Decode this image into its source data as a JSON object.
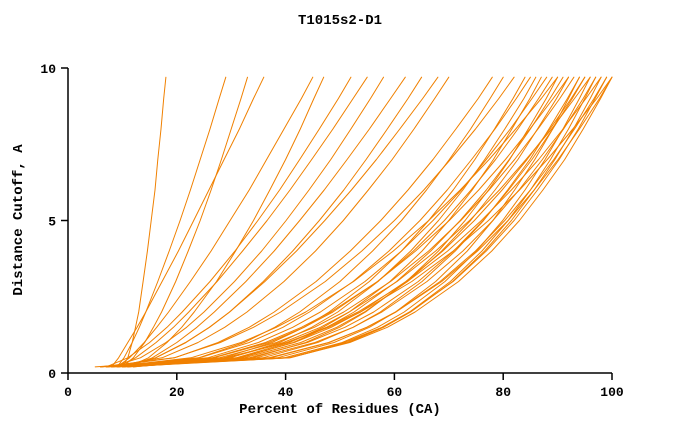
{
  "title": "T1015s2-D1",
  "chart_data": {
    "type": "line",
    "title": "T1015s2-D1",
    "xlabel": "Percent of Residues (CA)",
    "ylabel": "Distance Cutoff, A",
    "xlim": [
      0,
      100
    ],
    "ylim": [
      0,
      10
    ],
    "x_ticks": [
      0,
      20,
      40,
      60,
      80,
      100
    ],
    "y_ticks": [
      0,
      5,
      10
    ],
    "grid": false,
    "legend": "none",
    "line_color": "#f08000",
    "axis_color": "#000000",
    "background": "#ffffff",
    "y_levels": [
      0.2,
      0.5,
      1,
      1.5,
      2,
      3,
      4,
      5,
      6,
      7,
      8,
      9,
      9.7
    ],
    "series_x": [
      [
        10,
        11,
        11.8,
        12.4,
        13,
        13.8,
        14.6,
        15.3,
        16,
        16.5,
        17.1,
        17.6,
        18
      ],
      [
        9,
        10.3,
        11.8,
        13.1,
        14.3,
        16.5,
        18.6,
        20.6,
        22.5,
        24.3,
        26.1,
        27.8,
        29
      ],
      [
        10,
        12,
        14.1,
        15.7,
        17.2,
        19.8,
        22.1,
        24.3,
        26.3,
        28.2,
        30,
        31.8,
        33
      ],
      [
        8,
        9.3,
        11,
        12.7,
        14.3,
        17.3,
        20.3,
        23.1,
        25.9,
        28.7,
        31.5,
        34.1,
        36
      ],
      [
        9,
        11.3,
        14,
        16.3,
        18.5,
        22.5,
        26.3,
        29.8,
        33.3,
        36.5,
        39.7,
        42.9,
        45
      ],
      [
        11,
        14.8,
        18.2,
        20.9,
        23.2,
        27.3,
        30.8,
        34.1,
        37.1,
        40,
        42.7,
        45.2,
        47
      ],
      [
        7,
        11,
        15,
        18.2,
        21,
        26.1,
        30.7,
        34.9,
        38.9,
        42.6,
        46.2,
        49.7,
        52
      ],
      [
        9,
        12.4,
        16.2,
        19.4,
        22.2,
        27.4,
        32.1,
        36.6,
        40.8,
        44.8,
        48.7,
        52.4,
        55
      ],
      [
        8,
        13.3,
        18,
        21.8,
        25,
        30.6,
        35.6,
        40.1,
        44.3,
        48.3,
        52,
        55.6,
        58
      ],
      [
        11,
        15.5,
        20,
        23.7,
        26.9,
        32.7,
        37.9,
        42.6,
        47.1,
        51.3,
        55.4,
        59.3,
        62
      ],
      [
        9,
        16.1,
        21.7,
        26,
        29.7,
        35.9,
        41.3,
        46.2,
        50.7,
        54.8,
        58.7,
        62.5,
        65
      ],
      [
        10,
        16.1,
        21.6,
        26,
        29.7,
        36.2,
        42,
        47.2,
        52.1,
        56.7,
        61,
        65.2,
        68
      ],
      [
        8,
        17.3,
        23.9,
        28.8,
        32.9,
        39.7,
        45.5,
        50.6,
        55.2,
        59.6,
        63.6,
        67.4,
        70
      ],
      [
        7,
        19.6,
        27.6,
        33.3,
        37.9,
        45.6,
        51.9,
        57.5,
        62.5,
        67.1,
        71.3,
        75.4,
        78
      ],
      [
        9,
        24,
        32.4,
        38,
        42.6,
        50,
        56,
        61.3,
        65.9,
        70.1,
        74,
        77.6,
        80
      ],
      [
        6,
        19.5,
        28,
        34.1,
        39.1,
        47.3,
        54,
        60,
        65.4,
        70.3,
        74.9,
        79.2,
        82
      ],
      [
        10,
        28.6,
        37.5,
        43.4,
        48,
        55.4,
        61.3,
        66.3,
        70.8,
        74.8,
        78.4,
        81.8,
        84
      ],
      [
        8,
        24.2,
        33.3,
        39.5,
        44.4,
        52.4,
        59,
        64.7,
        69.7,
        74.2,
        78.5,
        82.4,
        85
      ],
      [
        11,
        29.8,
        38.9,
        44.8,
        49.6,
        57,
        63,
        68.1,
        72.6,
        76.6,
        80.3,
        83.8,
        86
      ],
      [
        7,
        30.9,
        40.7,
        46.9,
        51.7,
        59.2,
        65.1,
        70,
        74.3,
        78.2,
        81.6,
        84.9,
        87
      ],
      [
        9,
        25.7,
        35,
        41.3,
        46.4,
        54.6,
        61.3,
        67.1,
        72.3,
        76.9,
        81.3,
        85.3,
        88
      ],
      [
        6,
        26.8,
        36.9,
        43.4,
        48.7,
        56.9,
        63.5,
        69.2,
        74.1,
        78.6,
        82.7,
        86.5,
        89
      ],
      [
        10,
        33.9,
        43.7,
        49.9,
        54.7,
        62.2,
        68.1,
        73,
        77.3,
        81.2,
        84.6,
        87.9,
        90
      ],
      [
        8,
        22.6,
        31.8,
        38.3,
        43.7,
        52.5,
        59.8,
        66.3,
        72.1,
        77.4,
        82.3,
        87,
        90
      ],
      [
        12,
        31.8,
        41.4,
        47.6,
        52.6,
        60.4,
        66.7,
        72.1,
        76.9,
        81.1,
        85,
        88.6,
        91
      ],
      [
        7,
        32.4,
        42.8,
        49.4,
        54.5,
        62.4,
        68.7,
        74,
        78.5,
        82.7,
        86.3,
        89.8,
        92
      ],
      [
        9,
        26.5,
        36.3,
        42.9,
        48.3,
        56.9,
        63.9,
        70.1,
        75.5,
        80.4,
        84.9,
        89.2,
        92
      ],
      [
        6,
        27.8,
        38.3,
        45.3,
        50.7,
        59.3,
        66.3,
        72.2,
        77.4,
        82.1,
        86.4,
        90.4,
        93
      ],
      [
        11,
        35.8,
        45.9,
        52.4,
        57.4,
        65.1,
        71.2,
        76.4,
        80.8,
        84.9,
        88.4,
        91.8,
        94
      ],
      [
        8,
        38.5,
        48.9,
        55.4,
        60.2,
        67.6,
        73.4,
        78.1,
        82.1,
        85.8,
        89.1,
        92,
        94
      ],
      [
        10,
        31.3,
        41.6,
        48.4,
        53.7,
        62.1,
        68.9,
        74.7,
        79.8,
        84.4,
        88.6,
        92.5,
        95
      ],
      [
        7,
        33.3,
        44,
        50.9,
        56.2,
        64.4,
        70.9,
        76.3,
        81,
        85.3,
        89.1,
        92.7,
        95
      ],
      [
        9,
        39.9,
        50.4,
        56.9,
        61.8,
        69.3,
        75.1,
        79.9,
        84,
        87.7,
        91,
        94,
        96
      ],
      [
        12,
        29.7,
        39.6,
        46.4,
        51.7,
        60.5,
        67.6,
        73.8,
        79.3,
        84.2,
        88.9,
        93.1,
        96
      ],
      [
        8,
        34.6,
        45.4,
        52.4,
        57.7,
        66,
        72.6,
        78.1,
        82.9,
        87.2,
        91.1,
        94.7,
        97
      ],
      [
        10,
        40.9,
        51.4,
        57.9,
        62.8,
        70.3,
        76.1,
        80.9,
        85,
        88.7,
        92,
        95,
        97
      ],
      [
        6,
        29.1,
        40.2,
        47.5,
        53.3,
        62.4,
        69.8,
        76,
        81.5,
        86.5,
        91,
        95.2,
        98
      ],
      [
        9,
        40.6,
        51.4,
        58,
        63,
        70.7,
        76.6,
        81.5,
        85.7,
        89.5,
        92.9,
        96,
        98
      ],
      [
        11,
        37.3,
        48,
        54.9,
        60.2,
        68.4,
        74.9,
        80.3,
        85,
        89.3,
        93.1,
        96.7,
        99
      ],
      [
        7,
        39.7,
        50.8,
        57.7,
        62.8,
        70.8,
        76.9,
        82,
        86.3,
        90.3,
        93.8,
        96.9,
        99
      ],
      [
        10,
        36.9,
        47.9,
        54.9,
        60.3,
        68.7,
        75.3,
        80.9,
        85.7,
        90.1,
        94,
        97.7,
        100
      ],
      [
        8,
        40.7,
        51.8,
        58.7,
        63.8,
        71.8,
        77.9,
        83,
        87.3,
        91.3,
        94.7,
        97.9,
        100
      ],
      [
        5,
        28.8,
        40.3,
        47.9,
        53.8,
        63.2,
        70.8,
        77.3,
        83,
        88.1,
        92.8,
        97.2,
        100
      ]
    ]
  }
}
